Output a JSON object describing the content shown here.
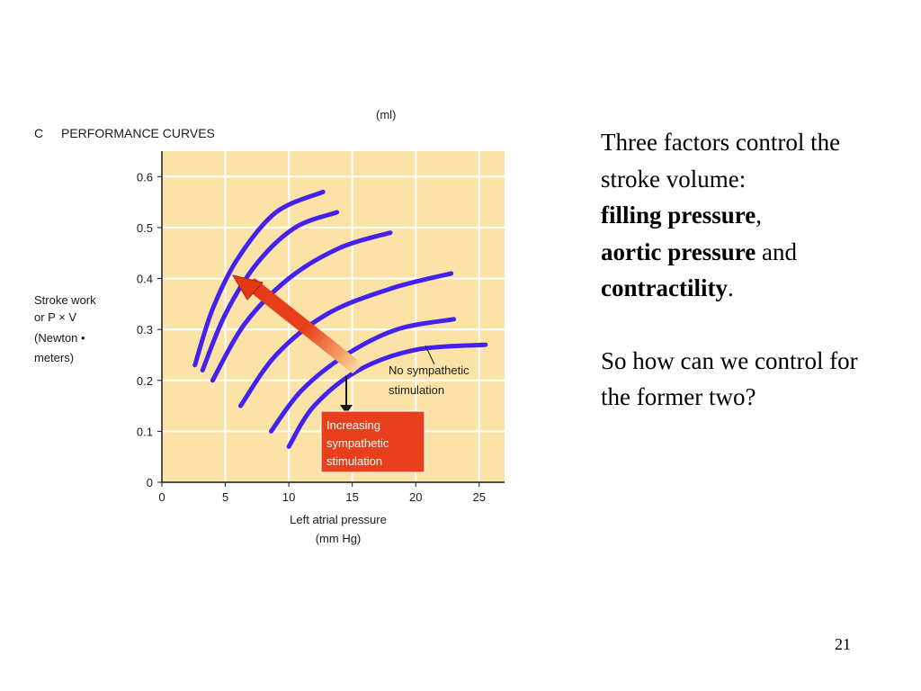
{
  "slide": {
    "paragraph1": {
      "intro": "Three factors control the stroke volume:",
      "factor1": "filling pressure",
      "sep1": ",",
      "factor2": "aortic pressure",
      "sep2": " and",
      "factor3": "contractility",
      "end": "."
    },
    "paragraph2": "So how can we control for the former two?",
    "page_number": "21"
  },
  "colors": {
    "plot_background": "#fbe3a8",
    "curve": "#4422ee",
    "arrow": "#e8401c",
    "label_box": "#e8401c",
    "label_text": "#ffffff"
  },
  "chart_data": {
    "type": "line",
    "panel_label": "C",
    "title": "PERFORMANCE CURVES",
    "unit_note": "(ml)",
    "ylabel": [
      "Stroke work",
      "or P × V",
      "(Newton •",
      "meters)"
    ],
    "xlabel": [
      "Left atrial pressure",
      "(mm Hg)"
    ],
    "xlim": [
      0,
      27
    ],
    "ylim": [
      0,
      0.65
    ],
    "xticks": [
      0,
      5,
      10,
      15,
      20,
      25
    ],
    "xtick_labels": [
      "0",
      "5",
      "10",
      "15",
      "20",
      "25"
    ],
    "yticks": [
      0,
      0.1,
      0.2,
      0.3,
      0.4,
      0.5,
      0.6
    ],
    "ytick_labels": [
      "0",
      "0.1",
      "0.2",
      "0.3",
      "0.4",
      "0.5",
      "0.6"
    ],
    "grid": true,
    "series": [
      {
        "points": [
          [
            2.6,
            0.23
          ],
          [
            4.0,
            0.34
          ],
          [
            6.0,
            0.44
          ],
          [
            9.0,
            0.53
          ],
          [
            12.7,
            0.57
          ]
        ]
      },
      {
        "points": [
          [
            3.2,
            0.22
          ],
          [
            5.0,
            0.33
          ],
          [
            7.5,
            0.43
          ],
          [
            10.5,
            0.5
          ],
          [
            13.8,
            0.53
          ]
        ]
      },
      {
        "points": [
          [
            4.0,
            0.2
          ],
          [
            6.5,
            0.31
          ],
          [
            10.0,
            0.4
          ],
          [
            14.0,
            0.46
          ],
          [
            18.0,
            0.49
          ]
        ]
      },
      {
        "points": [
          [
            6.2,
            0.15
          ],
          [
            9.0,
            0.25
          ],
          [
            13.0,
            0.33
          ],
          [
            18.0,
            0.38
          ],
          [
            22.8,
            0.41
          ]
        ]
      },
      {
        "points": [
          [
            8.6,
            0.1
          ],
          [
            11.0,
            0.18
          ],
          [
            14.5,
            0.25
          ],
          [
            18.5,
            0.3
          ],
          [
            23.0,
            0.32
          ]
        ]
      },
      {
        "points": [
          [
            10.0,
            0.07
          ],
          [
            12.0,
            0.15
          ],
          [
            15.5,
            0.22
          ],
          [
            20.0,
            0.26
          ],
          [
            25.5,
            0.27
          ]
        ]
      }
    ],
    "annotations": {
      "baseline": [
        "No sympathetic",
        "stimulation"
      ],
      "increasing": [
        "Increasing",
        "sympathetic",
        "stimulation"
      ]
    }
  }
}
